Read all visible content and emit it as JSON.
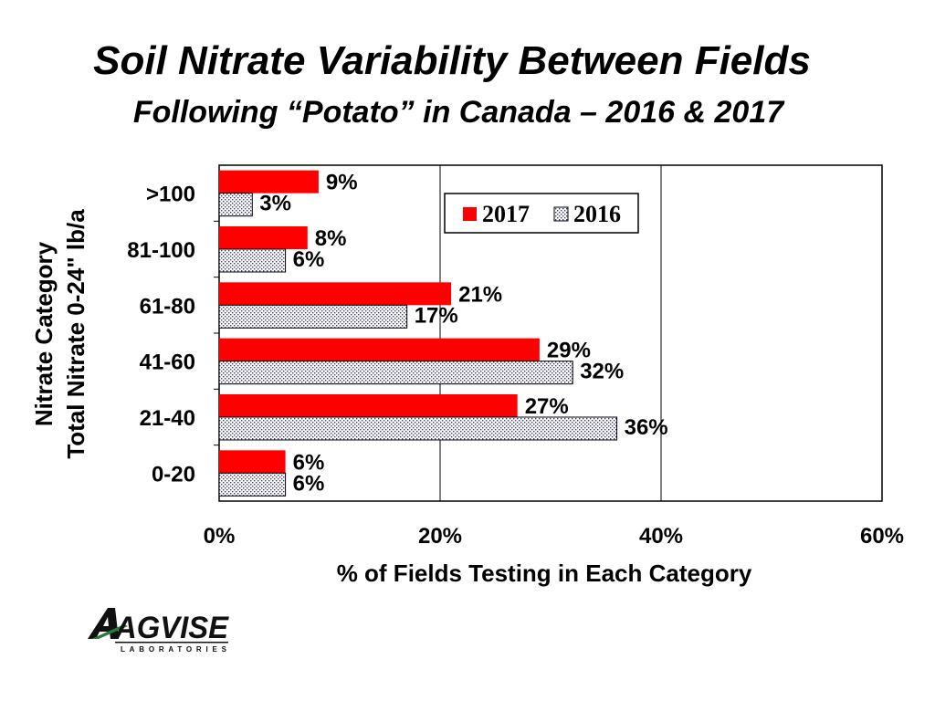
{
  "slide": {
    "title": "Soil Nitrate Variability Between Fields",
    "subtitle": "Following “Potato” in Canada – 2016 & 2017"
  },
  "logo": {
    "name": "AGVISE",
    "sub": "LABORATORIES"
  },
  "chart_data": {
    "type": "bar",
    "orientation": "horizontal",
    "categories": [
      "0-20",
      "21-40",
      "41-60",
      "61-80",
      "81-100",
      ">100"
    ],
    "series": [
      {
        "name": "2017",
        "values": [
          6,
          27,
          29,
          21,
          8,
          9
        ],
        "labels": [
          "6%",
          "27%",
          "29%",
          "21%",
          "8%",
          "9%"
        ],
        "color": "#ff0000",
        "pattern": "solid"
      },
      {
        "name": "2016",
        "values": [
          6,
          36,
          32,
          17,
          6,
          3
        ],
        "labels": [
          "6%",
          "36%",
          "32%",
          "17%",
          "6%",
          "3%"
        ],
        "color": "#ffffff",
        "pattern": "dotted"
      }
    ],
    "xlabel": "% of Fields Testing in Each Category",
    "ylabel_line1": "Nitrate Category",
    "ylabel_line2": "Total Nitrate 0-24\" lb/a",
    "xlim": [
      0,
      60
    ],
    "xticks": [
      0,
      20,
      40,
      60
    ],
    "xtick_labels": [
      "0%",
      "20%",
      "40%",
      "60%"
    ],
    "grid": "vertical",
    "legend": "top-center"
  }
}
